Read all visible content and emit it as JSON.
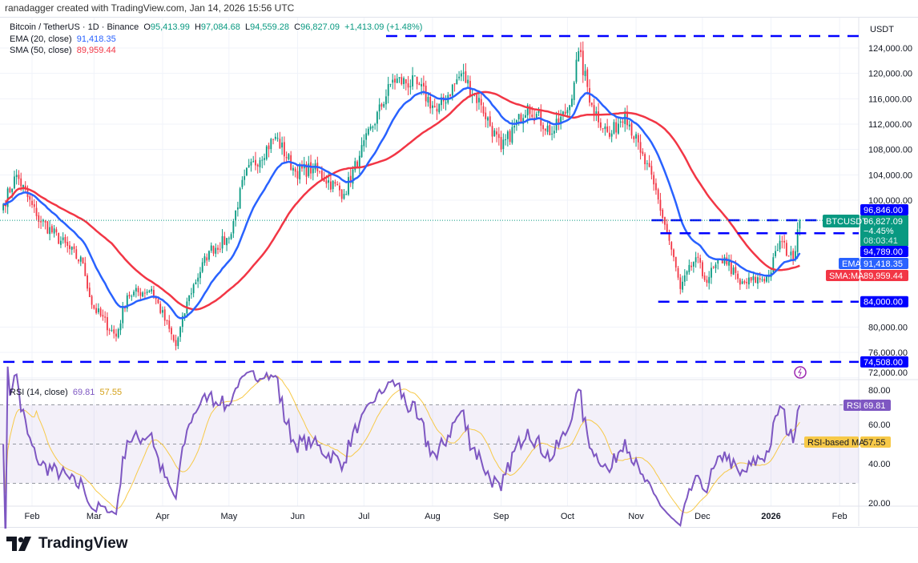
{
  "credit": "ranadagger created with TradingView.com, Jan 14, 2026 15:56 UTC",
  "legend": {
    "symbol": "Bitcoin / TetherUS · 1D · Binance",
    "o_label": "O",
    "o": "95,413.99",
    "h_label": "H",
    "h": "97,084.68",
    "l_label": "L",
    "l": "94,559.28",
    "c_label": "C",
    "c": "96,827.09",
    "change": "+1,413.09 (+1.48%)",
    "ema_label": "EMA (20, close)",
    "ema": "91,418.35",
    "sma_label": "SMA (50, close)",
    "sma": "89,959.44",
    "rsi_label": "RSI (14, close)",
    "rsi": "69.81",
    "rsi_ma": "57.55"
  },
  "currency": "USDT",
  "price_labels": {
    "level_top": "96,846.00",
    "ticker": "BTCUSDT",
    "last": "96,827.09",
    "last_change": "−4.45%",
    "countdown": "08:03:41",
    "level_mid": "94,789.00",
    "ema_tag": "EMA",
    "ema": "91,418.35",
    "sma_tag": "SMA:MA",
    "sma": "89,959.44",
    "support": "84,000.00",
    "low_support": "74,508.00",
    "rsi_tag": "RSI",
    "rsi": "69.81",
    "rsi_ma_tag": "RSI-based MA",
    "rsi_ma": "57.55"
  },
  "brand": "TradingView",
  "colors": {
    "up": "#089981",
    "down": "#f23645",
    "ema": "#2962ff",
    "sma": "#f23645",
    "rsi": "#7e57c2",
    "rsi_ma": "#f7c948",
    "level": "#0000ff"
  },
  "chart_data": {
    "type": "candlestick",
    "title": "Bitcoin / TetherUS · 1D · Binance",
    "price_ticks": [
      124000,
      120000,
      116000,
      112000,
      108000,
      104000,
      100000,
      80000,
      76000,
      72000
    ],
    "price_range": [
      70500,
      126000
    ],
    "rsi_ticks": [
      "80.00",
      "60.00",
      "40.00",
      "20.00"
    ],
    "rsi_band": [
      30,
      70
    ],
    "x_ticks": [
      "Feb",
      "Mar",
      "Apr",
      "May",
      "Jun",
      "Jul",
      "Aug",
      "Sep",
      "Oct",
      "Nov",
      "Dec",
      "2026",
      "Feb"
    ],
    "x_tick_dates": [
      "2025-02-01",
      "2025-03-01",
      "2025-04-01",
      "2025-05-01",
      "2025-06-01",
      "2025-07-01",
      "2025-08-01",
      "2025-09-01",
      "2025-10-01",
      "2025-11-01",
      "2025-12-01",
      "2026-01-01",
      "2026-02-01"
    ],
    "horizontal_levels": [
      {
        "price": 125900,
        "from": "2025-07-11"
      },
      {
        "price": 96846,
        "from": "2025-11-08"
      },
      {
        "price": 94789,
        "from": "2025-11-12"
      },
      {
        "price": 84000,
        "from": "2025-11-11"
      },
      {
        "price": 74508,
        "from": "2025-01-19"
      }
    ],
    "approx_closes": [
      [
        "2025-01-19",
        99400
      ],
      [
        "2025-01-25",
        104000
      ],
      [
        "2025-02-03",
        97500
      ],
      [
        "2025-02-24",
        90000
      ],
      [
        "2025-02-28",
        83500
      ],
      [
        "2025-03-11",
        78500
      ],
      [
        "2025-03-16",
        85000
      ],
      [
        "2025-03-27",
        86000
      ],
      [
        "2025-04-07",
        77000
      ],
      [
        "2025-04-13",
        85000
      ],
      [
        "2025-04-22",
        92000
      ],
      [
        "2025-05-01",
        94000
      ],
      [
        "2025-05-08",
        103800
      ],
      [
        "2025-05-22",
        110000
      ],
      [
        "2025-05-31",
        104500
      ],
      [
        "2025-06-08",
        105000
      ],
      [
        "2025-06-22",
        101000
      ],
      [
        "2025-06-29",
        107000
      ],
      [
        "2025-07-14",
        119000
      ],
      [
        "2025-07-25",
        118300
      ],
      [
        "2025-08-03",
        114000
      ],
      [
        "2025-08-14",
        120000
      ],
      [
        "2025-08-23",
        115000
      ],
      [
        "2025-09-01",
        108000
      ],
      [
        "2025-09-13",
        115000
      ],
      [
        "2025-09-24",
        110500
      ],
      [
        "2025-10-02",
        115000
      ],
      [
        "2025-10-06",
        123500
      ],
      [
        "2025-10-12",
        115000
      ],
      [
        "2025-10-20",
        110000
      ],
      [
        "2025-10-27",
        114000
      ],
      [
        "2025-11-03",
        107500
      ],
      [
        "2025-11-09",
        102500
      ],
      [
        "2025-11-16",
        93600
      ],
      [
        "2025-11-21",
        86000
      ],
      [
        "2025-11-28",
        91000
      ],
      [
        "2025-12-02",
        87400
      ],
      [
        "2025-12-11",
        91000
      ],
      [
        "2025-12-18",
        86700
      ],
      [
        "2025-12-31",
        88000
      ],
      [
        "2026-01-05",
        93600
      ],
      [
        "2026-01-11",
        90500
      ],
      [
        "2026-01-13",
        95414
      ],
      [
        "2026-01-14",
        96827
      ]
    ]
  }
}
